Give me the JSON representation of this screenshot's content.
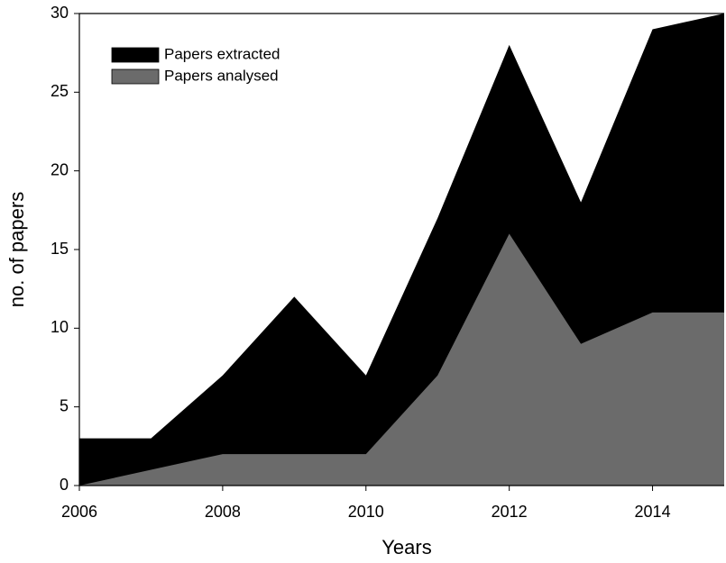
{
  "chart_data": {
    "type": "area",
    "x_label": "Years",
    "y_label": "no. of papers",
    "x": [
      2006,
      2007,
      2008,
      2009,
      2010,
      2011,
      2012,
      2013,
      2014,
      2015
    ],
    "series": [
      {
        "name": "Papers extracted",
        "color": "#000000",
        "values": [
          3,
          3,
          7,
          12,
          7,
          17,
          28,
          18,
          29,
          30
        ]
      },
      {
        "name": "Papers analysed",
        "color": "#6b6b6b",
        "values": [
          0,
          1,
          2,
          2,
          2,
          7,
          16,
          9,
          11,
          11
        ]
      }
    ],
    "xlim": [
      2006,
      2015
    ],
    "xticks": [
      2006,
      2008,
      2010,
      2012,
      2014
    ],
    "ylim": [
      0,
      30
    ],
    "yticks": [
      0,
      5,
      10,
      15,
      20,
      25,
      30
    ],
    "legend": "upper left"
  }
}
